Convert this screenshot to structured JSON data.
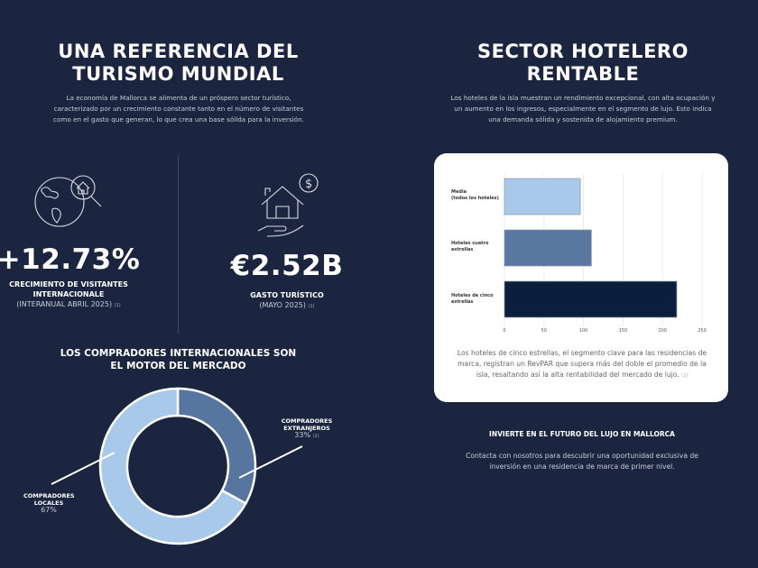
{
  "left": {
    "title_line1": "UNA REFERENCIA DEL",
    "title_line2": "TURISMO MUNDIAL",
    "paragraph": "La economía de Mallorca se alimenta de un próspero sector turístico, caracterizado por un crecimiento constante tanto en el número de visitantes como en el gasto que generan, lo que crea una base sólida para la inversión.",
    "stat1": {
      "icon": "globe-house-search-icon",
      "value": "+12.73%",
      "label_line1": "CRECIMIENTO DE VISITANTES",
      "label_line2": "INTERNACIONALE",
      "sub": "(INTERANUAL ABRIL 2025)",
      "footnote": "(1)"
    },
    "stat2": {
      "icon": "house-hand-dollar-icon",
      "value": "€2.52B",
      "label": "GASTO TURÍSTICO",
      "sub": "(MAYO 2025)",
      "footnote": "(1)"
    },
    "buyers_title_line1": "LOS COMPRADORES INTERNACIONALES SON",
    "buyers_title_line2": "EL MOTOR DEL MERCADO"
  },
  "right": {
    "title_line1": "SECTOR HOTELERO",
    "title_line2": "RENTABLE",
    "paragraph": "Los hoteles de la isla muestran un rendimiento excepcional, con alta ocupación y un aumento en los ingresos, especialmente en el segmento de lujo. Esto indica una demanda sólida y sostenida de alojamiento premium.",
    "card_text": "Los hoteles de cinco estrellas, el segmento clave para las residencias de marca, registran un RevPAR que supera más del doble el promedio de la isla, resaltando así la alta rentabilidad del mercado de lujo.",
    "card_footnote": "(2)",
    "cta_title": "INVIERTE EN EL FUTURO DEL LUJO EN MALLORCA",
    "cta_text": "Contacta con nosotros para descubrir una oportunidad exclusiva de inversión en una residencia de marca de primer nivel."
  },
  "chart_data": [
    {
      "type": "bar",
      "orientation": "horizontal",
      "categories": [
        "Media\n(todos los hoteles)",
        "Hoteles cuatro estrellas",
        "Hoteles de cinco estrellas"
      ],
      "values": [
        96,
        110,
        218
      ],
      "colors": [
        "#a9c9ea",
        "#5878a0",
        "#0c1e3e"
      ],
      "xlim": [
        0,
        250
      ],
      "xticks": [
        0,
        50,
        100,
        150,
        200,
        250
      ],
      "grid": true
    },
    {
      "type": "pie",
      "variant": "donut",
      "slices": [
        {
          "label": "COMPRADORES EXTRANJEROS",
          "value": 33,
          "display": "33%",
          "footnote": "(2)",
          "color": "#56769f"
        },
        {
          "label": "COMPRADORES LOCALES",
          "value": 67,
          "display": "67%",
          "color": "#a9c9ea"
        }
      ]
    }
  ]
}
